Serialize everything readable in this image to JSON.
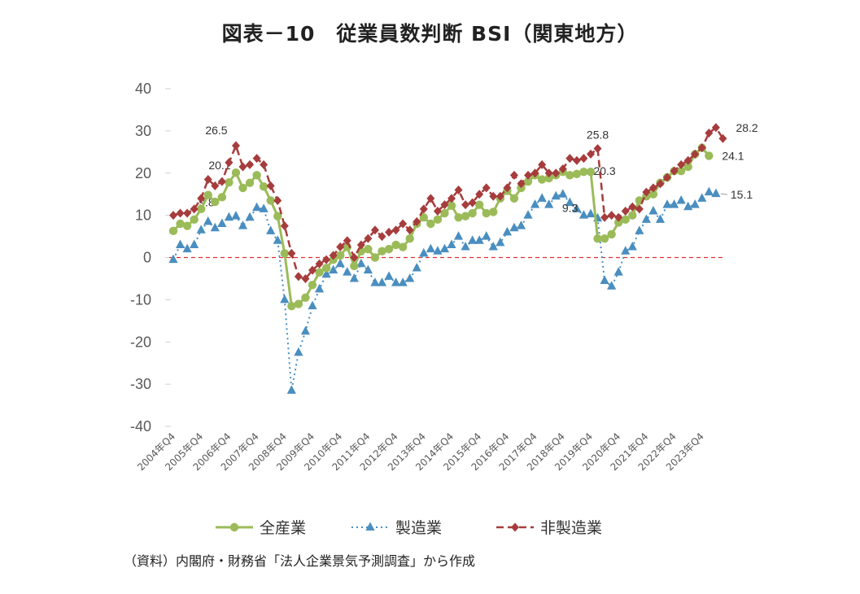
{
  "title": "図表－10　従業員数判断 BSI（関東地方）",
  "source": "（資料）内閣府・財務省「法人企業景気予測調査」から作成",
  "chart_data": {
    "type": "line",
    "title": "図表－10　従業員数判断 BSI（関東地方）",
    "xlabel": "",
    "ylabel": "",
    "ylim": [
      -40,
      40
    ],
    "yticks": [
      40,
      30,
      20,
      10,
      0,
      -10,
      -20,
      -30,
      -40
    ],
    "grid": false,
    "legend_position": "bottom",
    "x_start": "2004年Q4",
    "x_tick_labels": [
      "2004年Q4",
      "2005年Q4",
      "2006年Q4",
      "2007年Q4",
      "2008年Q4",
      "2009年Q4",
      "2010年Q4",
      "2011年Q4",
      "2012年Q4",
      "2013年Q4",
      "2014年Q4",
      "2015年Q4",
      "2016年Q4",
      "2017年Q4",
      "2018年Q4",
      "2019年Q4",
      "2020年Q4",
      "2021年Q4",
      "2022年Q4",
      "2023年Q4"
    ],
    "series": [
      {
        "name": "全産業",
        "color": "#9bbb59",
        "line_style": "solid",
        "marker": "circle",
        "values": [
          6.3,
          8,
          7.5,
          9,
          11.5,
          14.8,
          13.2,
          14.3,
          17.8,
          20.1,
          16.5,
          17.7,
          19.5,
          16.8,
          13.5,
          9.8,
          1,
          -11.5,
          -11,
          -9.5,
          -6.5,
          -3.5,
          -2.5,
          -0.5,
          0.5,
          2.5,
          -2,
          1.5,
          2,
          0,
          1.5,
          2,
          3,
          2.5,
          4.5,
          8,
          9.5,
          8,
          9,
          10.5,
          12.3,
          9.5,
          9.8,
          10.5,
          12.5,
          10.5,
          10.8,
          14,
          15.8,
          14,
          16.5,
          18,
          19.5,
          18.5,
          18.8,
          19.5,
          20.3,
          19.5,
          19.8,
          20.3,
          20.3,
          4.5,
          4.5,
          5.5,
          8.3,
          9,
          10,
          13.5,
          14.5,
          15,
          17.7,
          19,
          20.5,
          20.5,
          21.5,
          24.5,
          26,
          24.1
        ],
        "labels": [
          {
            "index": 9,
            "text": "20.1"
          },
          {
            "index": 59,
            "text": "20.3"
          },
          {
            "index": 77,
            "text": "24.1"
          }
        ]
      },
      {
        "name": "製造業",
        "color": "#4a8ec0",
        "line_style": "dotted",
        "marker": "triangle",
        "values": [
          -0.5,
          3,
          2,
          3,
          6.5,
          8.5,
          7,
          8,
          9.5,
          9.8,
          7.5,
          9.5,
          11.8,
          11.5,
          6.3,
          4,
          -10,
          -31.5,
          -22.5,
          -17.5,
          -11.5,
          -7.5,
          -4,
          -3,
          -1.5,
          -3.5,
          -5,
          -1.5,
          -3,
          -6,
          -6,
          -4.5,
          -6,
          -6,
          -5,
          -2.5,
          1,
          2,
          1.5,
          2,
          3,
          5,
          2.5,
          4,
          4,
          5,
          2.5,
          3.5,
          6,
          7,
          7.5,
          10,
          12.5,
          14,
          12.5,
          14.5,
          15,
          13,
          11.5,
          10,
          10.3,
          9.3,
          -5.5,
          -6.8,
          -3.5,
          1.5,
          2.5,
          6.3,
          9,
          11,
          9,
          12.5,
          12.5,
          13.5,
          12,
          12.5,
          14,
          15.5,
          15.1
        ],
        "labels": [
          {
            "index": 9,
            "text": "9.8"
          },
          {
            "index": 61,
            "text": "9.3"
          },
          {
            "index": 78,
            "text": "15.1"
          }
        ]
      },
      {
        "name": "非製造業",
        "color": "#a63c3c",
        "line_style": "dashed",
        "marker": "diamond",
        "values": [
          10,
          10.5,
          10.5,
          11.5,
          14,
          18.5,
          17,
          18,
          22.5,
          26.5,
          21.5,
          22,
          23.5,
          22,
          17,
          13.5,
          7.5,
          1,
          -4.5,
          -5,
          -3,
          -1.5,
          -0.5,
          0.5,
          2.5,
          4,
          0,
          3,
          4.5,
          6.5,
          5,
          6,
          6.5,
          8,
          6.5,
          8.5,
          11.5,
          14,
          11,
          12.5,
          14,
          16,
          12.5,
          13,
          15,
          16.5,
          14.5,
          14.5,
          16.5,
          19.5,
          17.5,
          19.5,
          20,
          22,
          20,
          20,
          21,
          23.5,
          23,
          23.5,
          24.5,
          25.8,
          9.5,
          10,
          9.5,
          11,
          12,
          11.5,
          15.5,
          16.5,
          17.5,
          19,
          20.5,
          22,
          23,
          24.5,
          26,
          29.5,
          30.8,
          28.2
        ],
        "labels": [
          {
            "index": 9,
            "text": "26.5"
          },
          {
            "index": 61,
            "text": "25.8"
          },
          {
            "index": 79,
            "text": "28.2"
          }
        ]
      }
    ]
  }
}
